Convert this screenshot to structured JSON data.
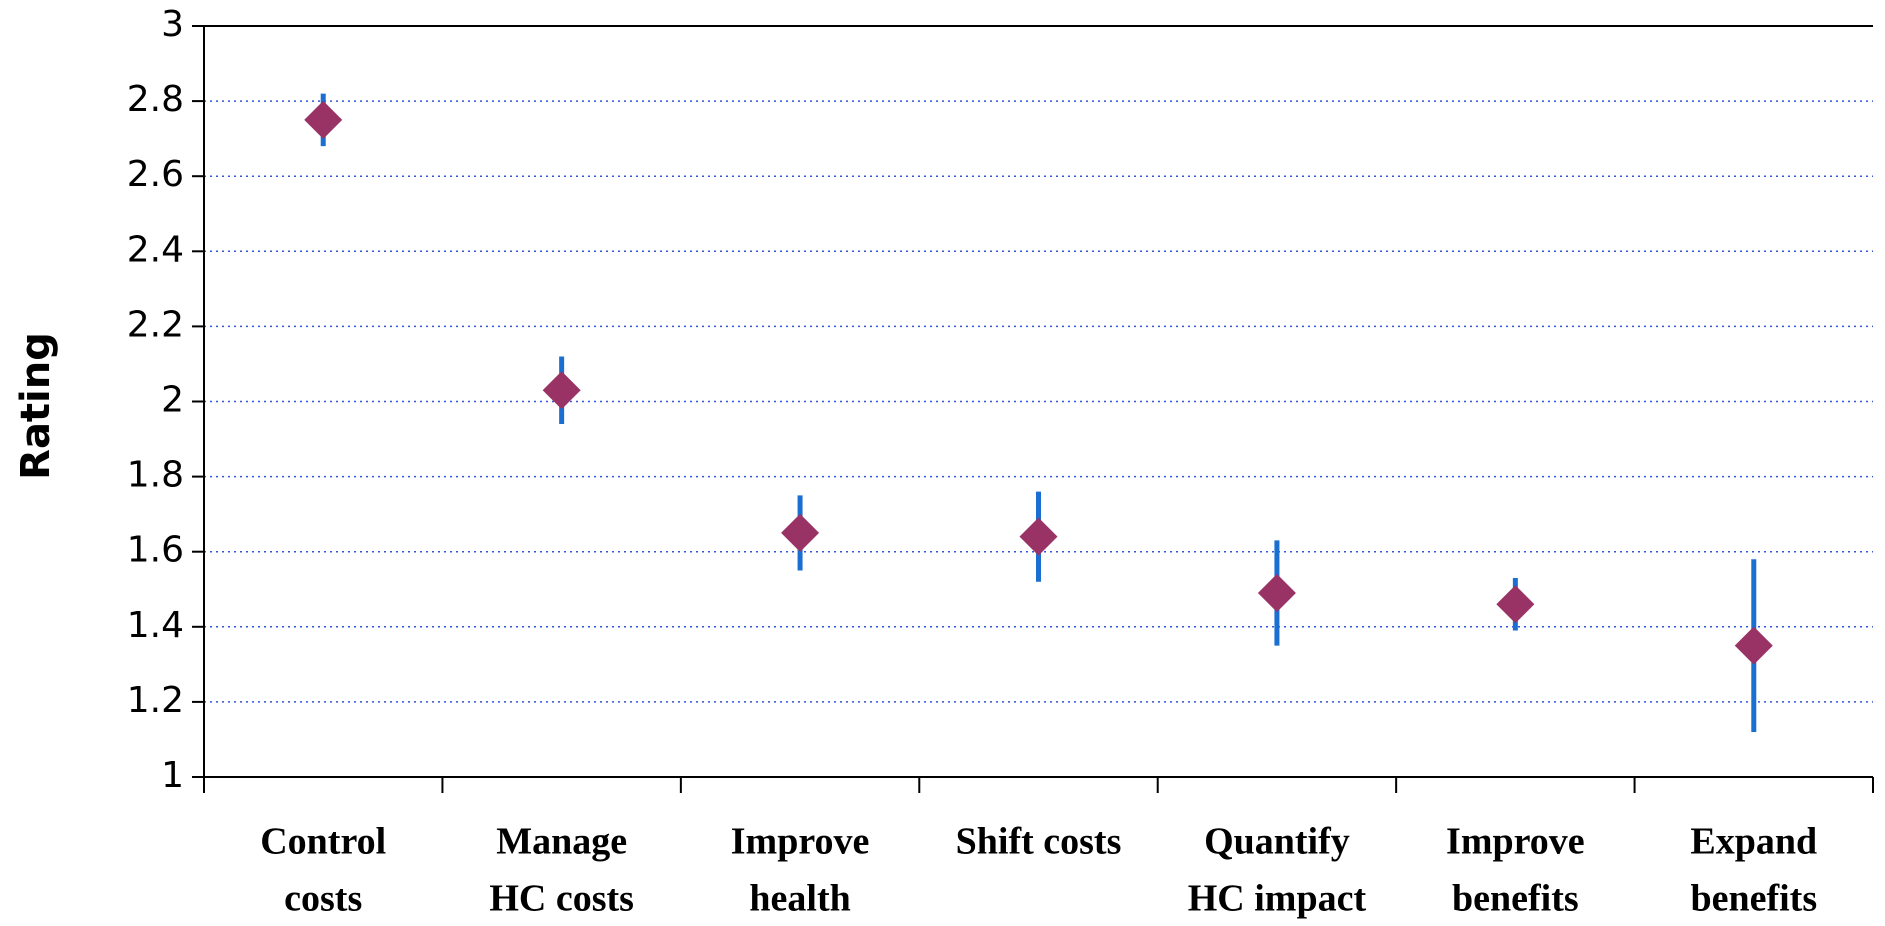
{
  "chart_data": {
    "type": "errorpoint",
    "y_label": "Rating",
    "categories": [
      [
        "Control",
        "costs"
      ],
      [
        "Manage",
        "HC costs"
      ],
      [
        "Improve",
        "health"
      ],
      [
        "Shift costs"
      ],
      [
        "Quantify",
        "HC impact"
      ],
      [
        "Improve",
        "benefits"
      ],
      [
        "Expand",
        "benefits"
      ]
    ],
    "values": [
      2.75,
      2.03,
      1.65,
      1.64,
      1.49,
      1.46,
      1.35
    ],
    "errors": [
      0.07,
      0.09,
      0.1,
      0.12,
      0.14,
      0.07,
      0.23
    ],
    "color": "#993366",
    "error_color": "#1a6fd1",
    "ylim": [
      1,
      3
    ],
    "yticks": [
      1,
      1.2,
      1.4,
      1.6,
      1.8,
      2,
      2.2,
      2.4,
      2.6,
      2.8,
      3
    ],
    "grid": true
  }
}
